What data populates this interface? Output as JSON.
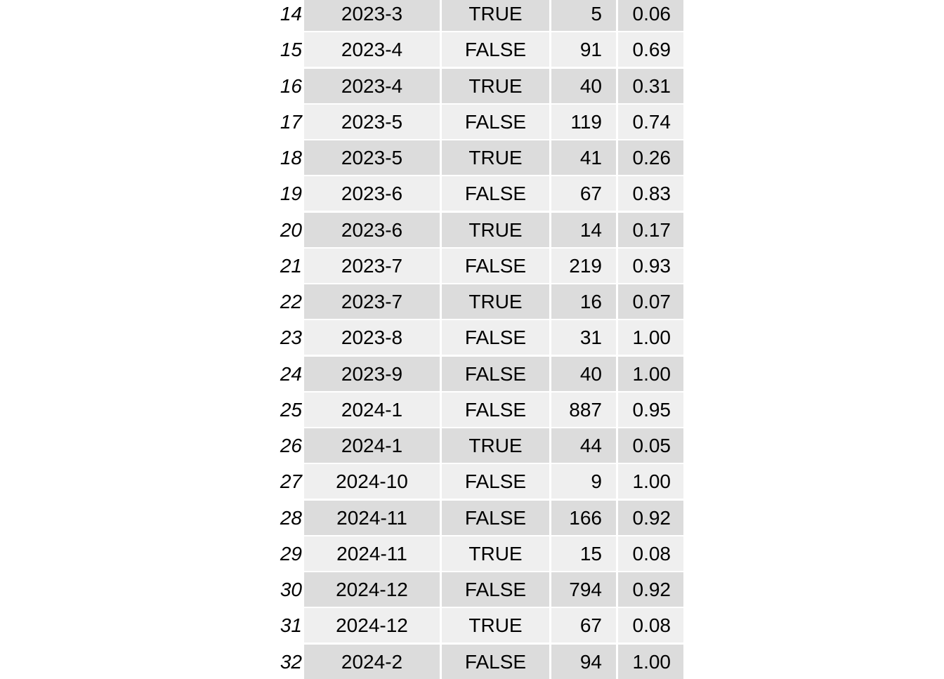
{
  "chart_data": {
    "type": "table",
    "rows": [
      {
        "row": "14",
        "period": "2023-3",
        "flag": "TRUE",
        "n": "5",
        "share": "0.06"
      },
      {
        "row": "15",
        "period": "2023-4",
        "flag": "FALSE",
        "n": "91",
        "share": "0.69"
      },
      {
        "row": "16",
        "period": "2023-4",
        "flag": "TRUE",
        "n": "40",
        "share": "0.31"
      },
      {
        "row": "17",
        "period": "2023-5",
        "flag": "FALSE",
        "n": "119",
        "share": "0.74"
      },
      {
        "row": "18",
        "period": "2023-5",
        "flag": "TRUE",
        "n": "41",
        "share": "0.26"
      },
      {
        "row": "19",
        "period": "2023-6",
        "flag": "FALSE",
        "n": "67",
        "share": "0.83"
      },
      {
        "row": "20",
        "period": "2023-6",
        "flag": "TRUE",
        "n": "14",
        "share": "0.17"
      },
      {
        "row": "21",
        "period": "2023-7",
        "flag": "FALSE",
        "n": "219",
        "share": "0.93"
      },
      {
        "row": "22",
        "period": "2023-7",
        "flag": "TRUE",
        "n": "16",
        "share": "0.07"
      },
      {
        "row": "23",
        "period": "2023-8",
        "flag": "FALSE",
        "n": "31",
        "share": "1.00"
      },
      {
        "row": "24",
        "period": "2023-9",
        "flag": "FALSE",
        "n": "40",
        "share": "1.00"
      },
      {
        "row": "25",
        "period": "2024-1",
        "flag": "FALSE",
        "n": "887",
        "share": "0.95"
      },
      {
        "row": "26",
        "period": "2024-1",
        "flag": "TRUE",
        "n": "44",
        "share": "0.05"
      },
      {
        "row": "27",
        "period": "2024-10",
        "flag": "FALSE",
        "n": "9",
        "share": "1.00"
      },
      {
        "row": "28",
        "period": "2024-11",
        "flag": "FALSE",
        "n": "166",
        "share": "0.92"
      },
      {
        "row": "29",
        "period": "2024-11",
        "flag": "TRUE",
        "n": "15",
        "share": "0.08"
      },
      {
        "row": "30",
        "period": "2024-12",
        "flag": "FALSE",
        "n": "794",
        "share": "0.92"
      },
      {
        "row": "31",
        "period": "2024-12",
        "flag": "TRUE",
        "n": "67",
        "share": "0.08"
      },
      {
        "row": "32",
        "period": "2024-2",
        "flag": "FALSE",
        "n": "94",
        "share": "1.00"
      }
    ],
    "colors": {
      "row_dark": "#dcdcdc",
      "row_light": "#efefef",
      "text": "#000000"
    }
  }
}
